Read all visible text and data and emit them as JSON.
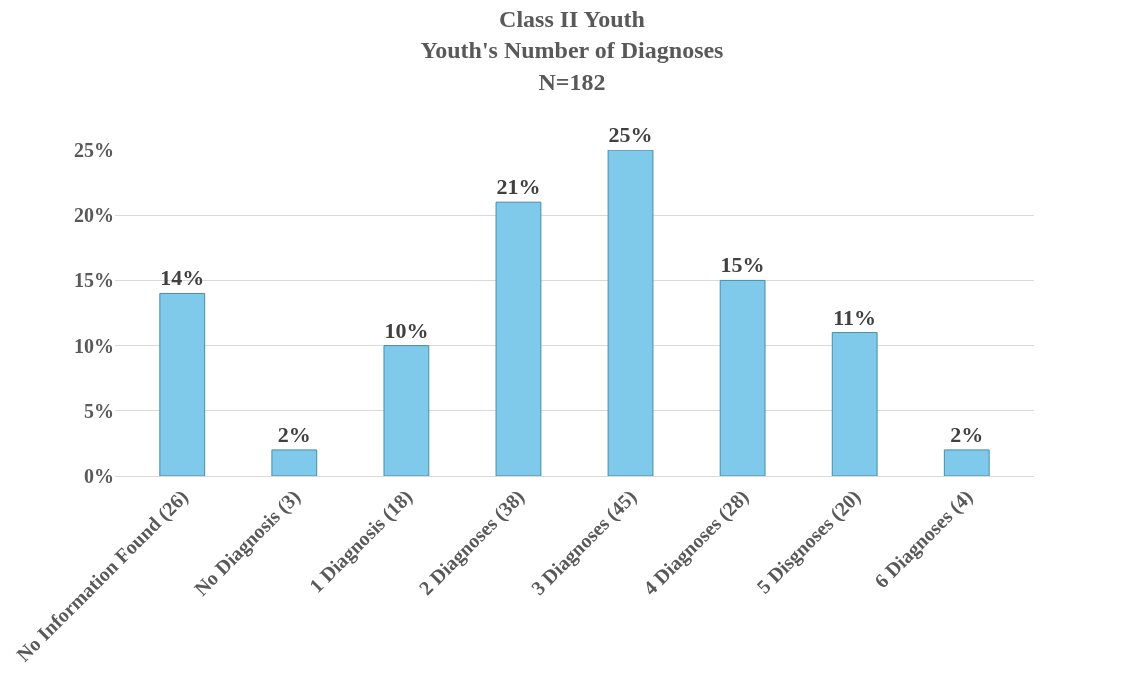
{
  "chart_data": {
    "type": "bar",
    "title": "Class II Youth\nYouth's Number of Diagnoses\nN=182",
    "categories": [
      "No Information Found (26)",
      "No Diagnosis (3)",
      "1 Diagnosis (18)",
      "2 Diagnoses (38)",
      "3 Diagnoses (45)",
      "4 Diagnoses (28)",
      "5 Disgnoses (20)",
      "6 Diagnoses (4)"
    ],
    "values": [
      14,
      2,
      10,
      21,
      25,
      15,
      11,
      2
    ],
    "value_labels": [
      "14%",
      "2%",
      "10%",
      "21%",
      "25%",
      "15%",
      "11%",
      "2%"
    ],
    "color": "#7fcaeb",
    "ylim": [
      0,
      25
    ],
    "yticks": [
      {
        "value": 0,
        "label": "0%"
      },
      {
        "value": 5,
        "label": "5%"
      },
      {
        "value": 10,
        "label": "10%"
      },
      {
        "value": 15,
        "label": "15%"
      },
      {
        "value": 20,
        "label": "20%"
      },
      {
        "value": 25,
        "label": "25%"
      }
    ],
    "grid": "y"
  }
}
